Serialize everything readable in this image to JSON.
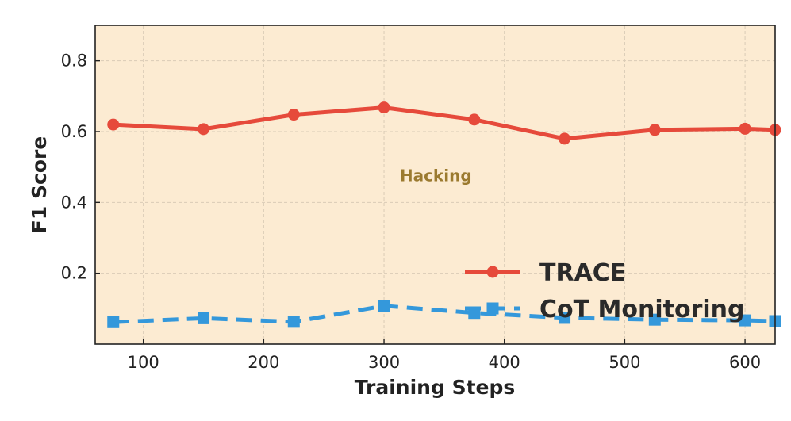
{
  "chart_data": {
    "type": "line",
    "title": "",
    "xlabel": "Training Steps",
    "ylabel": "F1 Score",
    "xlim": [
      60,
      625
    ],
    "ylim": [
      0.0,
      0.9
    ],
    "x_ticks": [
      100,
      200,
      300,
      400,
      500,
      600
    ],
    "y_ticks": [
      0.2,
      0.4,
      0.6,
      0.8
    ],
    "x_tick_labels": [
      "100",
      "200",
      "300",
      "400",
      "500",
      "600"
    ],
    "y_tick_labels": [
      "0.2",
      "0.4",
      "0.6",
      "0.8"
    ],
    "grid": true,
    "legend_position": "lower-right",
    "background_color": "#fcebd2",
    "annotation": {
      "text": "Hacking",
      "x": 343,
      "y": 0.46,
      "color": "#9b7a2f"
    },
    "x": [
      75,
      150,
      225,
      300,
      375,
      450,
      525,
      600,
      625
    ],
    "series": [
      {
        "name": "TRACE",
        "values": [
          0.62,
          0.607,
          0.648,
          0.668,
          0.634,
          0.58,
          0.605,
          0.608,
          0.605
        ],
        "color": "#e64a3b",
        "marker": "circle",
        "line_style": "solid"
      },
      {
        "name": "CoT Monitoring",
        "values": [
          0.062,
          0.073,
          0.063,
          0.108,
          0.088,
          0.074,
          0.069,
          0.067,
          0.065
        ],
        "color": "#3498db",
        "marker": "square",
        "line_style": "dashed"
      }
    ]
  }
}
